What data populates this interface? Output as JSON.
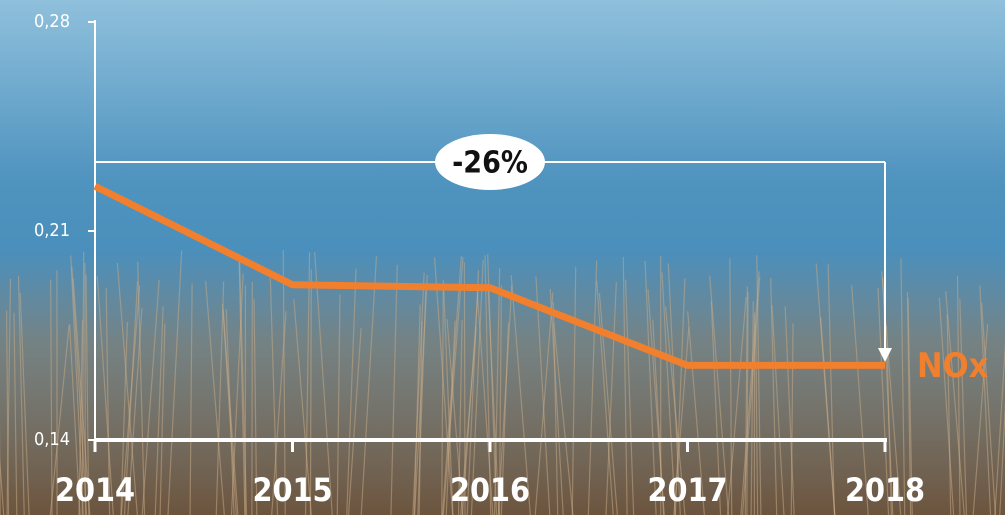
{
  "chart_data": {
    "type": "line",
    "categories": [
      "2014",
      "2015",
      "2016",
      "2017",
      "2018"
    ],
    "series": [
      {
        "name": "NOx",
        "color": "#f07f2e",
        "values": [
          0.225,
          0.192,
          0.191,
          0.165,
          0.165
        ]
      }
    ],
    "ylim": [
      0.14,
      0.28
    ],
    "yticks": [
      {
        "value": 0.14,
        "label": "0,14"
      },
      {
        "value": 0.21,
        "label": "0,21"
      },
      {
        "value": 0.28,
        "label": "0,28"
      }
    ],
    "annotation": "-26%"
  }
}
